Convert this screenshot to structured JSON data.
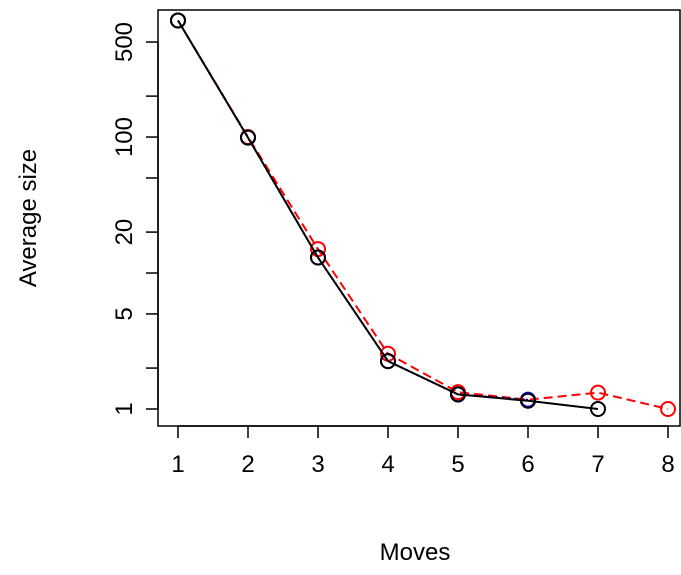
{
  "chart_data": {
    "type": "line",
    "title": "",
    "xlabel": "Moves",
    "ylabel": "Average size",
    "y_scale": "log",
    "xlim": [
      1,
      8
    ],
    "ylim": [
      0.8,
      900
    ],
    "x_ticks": [
      "1",
      "2",
      "3",
      "4",
      "5",
      "6",
      "7",
      "8"
    ],
    "y_ticks": [
      {
        "value": 1,
        "label": "1"
      },
      {
        "value": 2,
        "label": ""
      },
      {
        "value": 5,
        "label": "5"
      },
      {
        "value": 10,
        "label": ""
      },
      {
        "value": 20,
        "label": "20"
      },
      {
        "value": 50,
        "label": ""
      },
      {
        "value": 100,
        "label": "100"
      },
      {
        "value": 200,
        "label": ""
      },
      {
        "value": 500,
        "label": "500"
      }
    ],
    "grid": false,
    "series": [
      {
        "color": "#ff0000",
        "line_style": "dashed",
        "marker": "open-circle",
        "x": [
          1,
          2,
          3,
          4,
          5,
          6,
          7,
          8
        ],
        "y": [
          720,
          100,
          15,
          2.55,
          1.33,
          1.17,
          1.32,
          1.0
        ]
      },
      {
        "color": "#0000ff",
        "line_style": "dotted",
        "marker": "open-circle",
        "x": [
          1,
          2,
          3,
          4,
          5,
          6
        ],
        "y": [
          720,
          99,
          13,
          2.25,
          1.28,
          1.17
        ]
      },
      {
        "color": "#000000",
        "line_style": "solid",
        "marker": "open-circle",
        "x": [
          1,
          2,
          3,
          4,
          5,
          6,
          7
        ],
        "y": [
          720,
          99,
          13,
          2.25,
          1.28,
          1.15,
          1.0
        ]
      }
    ]
  }
}
